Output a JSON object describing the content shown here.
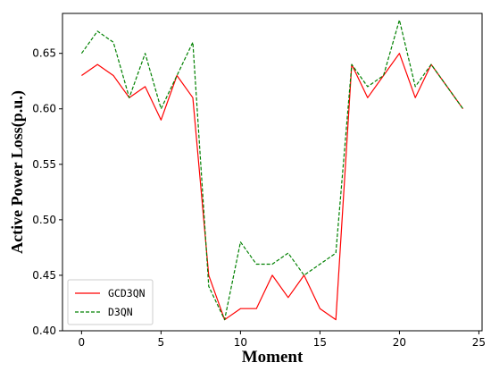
{
  "chart_data": {
    "type": "line",
    "title": "",
    "xlabel": "Moment",
    "ylabel": "Active Power Loss(p.u.)",
    "xlim": [
      -1.2,
      25.2
    ],
    "ylim": [
      0.4,
      0.686
    ],
    "xticks": [
      0,
      5,
      10,
      15,
      20,
      25
    ],
    "yticks": [
      0.4,
      0.45,
      0.5,
      0.55,
      0.6,
      0.65
    ],
    "grid": false,
    "legend_position": "lower-left",
    "x": [
      0,
      1,
      2,
      3,
      4,
      5,
      6,
      7,
      8,
      9,
      10,
      11,
      12,
      13,
      14,
      15,
      16,
      17,
      18,
      19,
      20,
      21,
      22,
      23,
      24
    ],
    "series": [
      {
        "name": "GCD3QN",
        "color": "#ff0000",
        "dash": "solid",
        "values": [
          0.63,
          0.64,
          0.63,
          0.61,
          0.62,
          0.59,
          0.63,
          0.61,
          0.45,
          0.41,
          0.42,
          0.42,
          0.45,
          0.43,
          0.45,
          0.42,
          0.41,
          0.64,
          0.61,
          0.63,
          0.65,
          0.61,
          0.64,
          0.62,
          0.6
        ]
      },
      {
        "name": "D3QN",
        "color": "#008000",
        "dash": "dashed",
        "values": [
          0.65,
          0.67,
          0.66,
          0.61,
          0.65,
          0.6,
          0.63,
          0.66,
          0.44,
          0.41,
          0.48,
          0.46,
          0.46,
          0.47,
          0.45,
          0.46,
          0.47,
          0.64,
          0.62,
          0.63,
          0.68,
          0.62,
          0.64,
          0.62,
          0.6
        ]
      }
    ]
  }
}
